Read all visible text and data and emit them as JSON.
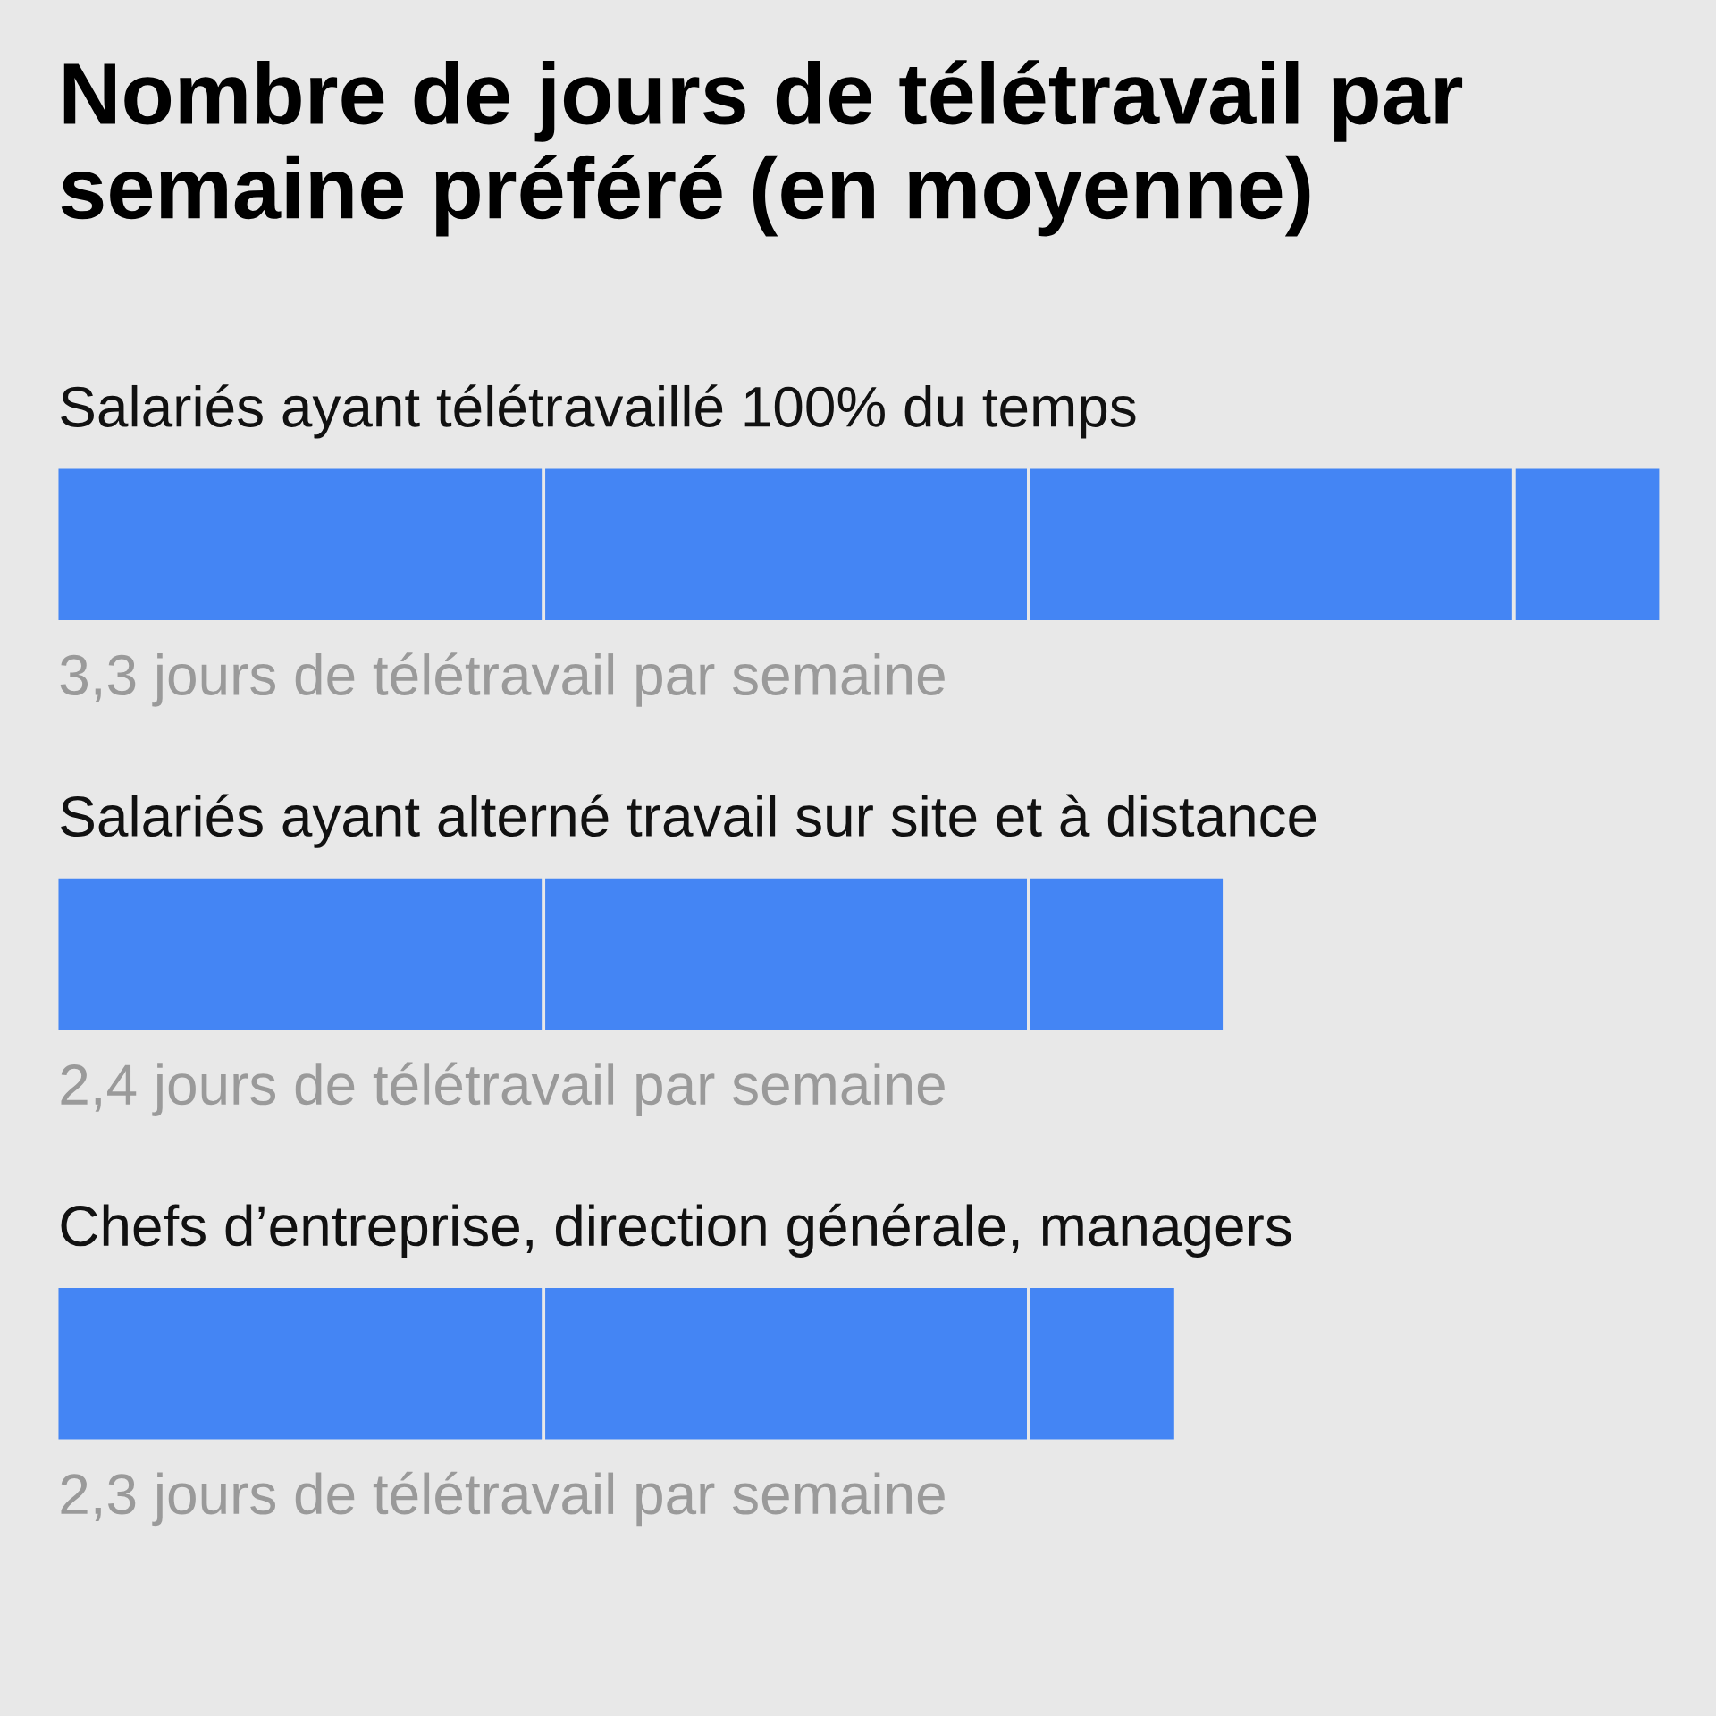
{
  "chart_data": {
    "type": "bar",
    "orientation": "horizontal",
    "title": "Nombre de jours de télétravail par\nsemaine préféré (en moyenne)",
    "categories": [
      "Salariés ayant télétravaillé 100% du temps",
      "Salariés ayant alterné travail sur site et à distance",
      "Chefs d’entreprise, direction générale, managers"
    ],
    "series": [
      {
        "color": "#4485f4",
        "values": [
          3.3,
          2.4,
          2.3
        ],
        "value_labels": [
          "3,3 jours de télétravail par semaine",
          "2,4 jours de télétravail par semaine",
          "2,3 jours de télétravail par semaine"
        ]
      }
    ]
  }
}
